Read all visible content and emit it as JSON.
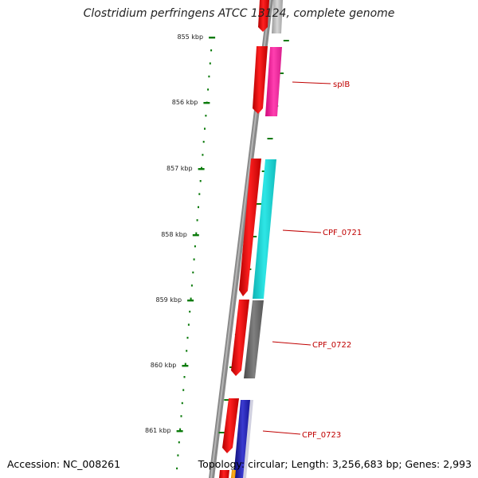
{
  "title": "Clostridium perfringens ATCC 13124, complete genome",
  "accession": "Accession: NC_008261",
  "summary": "Topology: circular; Length: 3,256,683 bp; Genes: 2,993",
  "colors": {
    "backbone": "#8a8a8a",
    "cds": "#ff0000",
    "tick": "#0a7a0a",
    "label": "#c00000",
    "splB": "#ff1f9f",
    "CPF_0721": "#1ad1d1",
    "CPF_0722": "#6e6e6e",
    "CPF_0723": "#1a1aa8",
    "top_gene": "#bdbdbd",
    "bottom_gene": "#f5a100"
  },
  "ticks": [
    "855 kbp",
    "856 kbp",
    "857 kbp",
    "858 kbp",
    "859 kbp",
    "860 kbp",
    "861 kbp"
  ],
  "gene_labels": [
    "splB",
    "CPF_0721",
    "CPF_0722",
    "CPF_0723"
  ]
}
